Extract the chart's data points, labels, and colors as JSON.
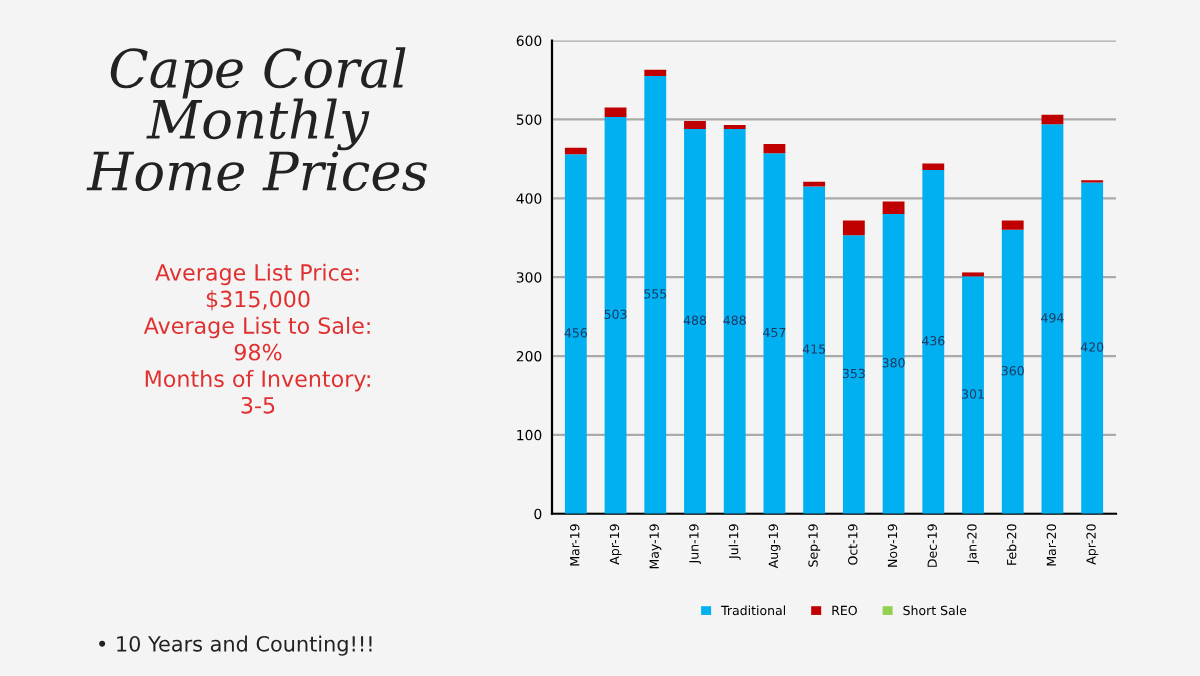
{
  "chart_data": {
    "type": "bar",
    "stacked": true,
    "title": "Cape Coral\nMonthly\nHome Prices",
    "categories": [
      "Mar-19",
      "Apr-19",
      "May-19",
      "Jun-19",
      "Jul-19",
      "Aug-19",
      "Sep-19",
      "Oct-19",
      "Nov-19",
      "Dec-19",
      "Jan-20",
      "Feb-20",
      "Mar-20",
      "Apr-20"
    ],
    "series": [
      {
        "name": "Traditional",
        "color": "#00b0f0",
        "values": [
          456,
          503,
          555,
          488,
          488,
          457,
          415,
          353,
          380,
          436,
          301,
          360,
          494,
          420
        ],
        "value_labels": [
          "456",
          "503",
          "555",
          "488",
          "488",
          "457",
          "415",
          "353",
          "380",
          "436",
          "301",
          "360",
          "494",
          "420"
        ]
      },
      {
        "name": "REO",
        "color": "#c00000",
        "values": [
          8,
          12,
          8,
          10,
          5,
          12,
          6,
          19,
          16,
          8,
          5,
          12,
          12,
          3
        ]
      },
      {
        "name": "Short Sale",
        "color": "#92d050",
        "values": [
          null,
          null,
          null,
          null,
          null,
          null,
          null,
          null,
          null,
          null,
          null,
          null,
          null,
          null
        ]
      }
    ],
    "ylim": [
      0,
      600
    ],
    "yticks": [
      0,
      100,
      200,
      300,
      400,
      500,
      600
    ],
    "grid": "y",
    "legend": "bottom",
    "annotations": [
      "Average List Price:\n$315,000\nAverage List to Sale:\n98%\nMonths of Inventory:\n3-5",
      "• 10 Years and Counting!!!"
    ]
  }
}
